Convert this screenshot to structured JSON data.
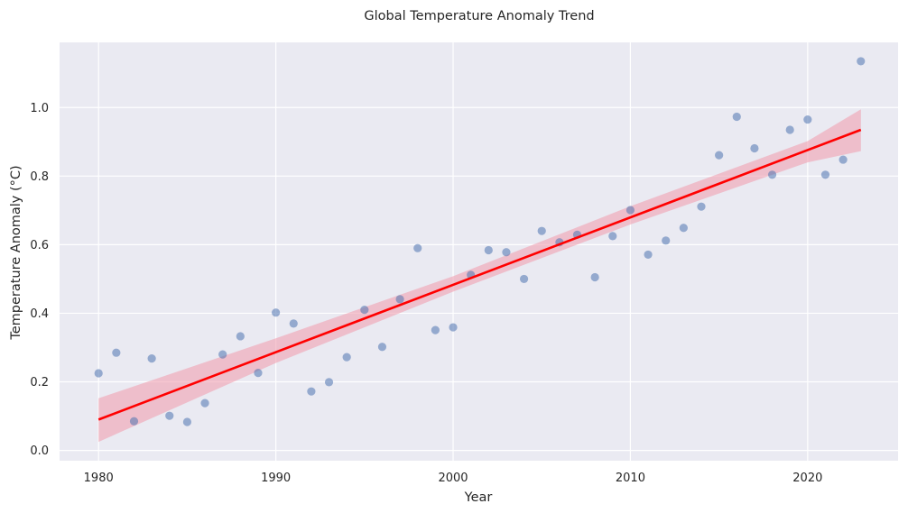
{
  "chart_data": {
    "type": "scatter",
    "title": "Global Temperature Anomaly Trend",
    "xlabel": "Year",
    "ylabel": "Temperature Anomaly (°C)",
    "xlim": [
      1977.8,
      2025.1
    ],
    "ylim": [
      -0.03,
      1.19
    ],
    "xticks": [
      1980,
      1990,
      2000,
      2010,
      2020
    ],
    "yticks": [
      0.0,
      0.2,
      0.4,
      0.6,
      0.8,
      1.0
    ],
    "grid": true,
    "legend": "none",
    "background_color": "#eaeaf2",
    "grid_color": "#ffffff",
    "series": [
      {
        "type": "scatter",
        "color": "#4c72b0",
        "x": [
          1980,
          1981,
          1982,
          1983,
          1984,
          1985,
          1986,
          1987,
          1988,
          1989,
          1990,
          1991,
          1992,
          1993,
          1994,
          1995,
          1996,
          1997,
          1998,
          1999,
          2000,
          2001,
          2002,
          2003,
          2004,
          2005,
          2006,
          2007,
          2008,
          2009,
          2010,
          2011,
          2012,
          2013,
          2014,
          2015,
          2016,
          2017,
          2018,
          2019,
          2020,
          2021,
          2022,
          2023
        ],
        "y": [
          0.225,
          0.285,
          0.085,
          0.268,
          0.101,
          0.083,
          0.138,
          0.28,
          0.333,
          0.226,
          0.402,
          0.37,
          0.172,
          0.199,
          0.272,
          0.41,
          0.302,
          0.441,
          0.59,
          0.351,
          0.359,
          0.512,
          0.584,
          0.578,
          0.5,
          0.64,
          0.607,
          0.629,
          0.505,
          0.625,
          0.701,
          0.571,
          0.612,
          0.649,
          0.711,
          0.861,
          0.973,
          0.881,
          0.804,
          0.935,
          0.965,
          0.804,
          0.848,
          1.135
        ]
      },
      {
        "type": "line",
        "color": "#ff0000",
        "x": [
          1980,
          2023
        ],
        "y": [
          0.09,
          0.935
        ]
      }
    ],
    "confidence_band": {
      "color": "#f0a0b0",
      "x": [
        1980,
        1990,
        2000,
        2010,
        2020,
        2023
      ],
      "lower": [
        0.025,
        0.255,
        0.463,
        0.659,
        0.84,
        0.873
      ],
      "upper": [
        0.152,
        0.327,
        0.508,
        0.712,
        0.902,
        0.995
      ]
    }
  }
}
